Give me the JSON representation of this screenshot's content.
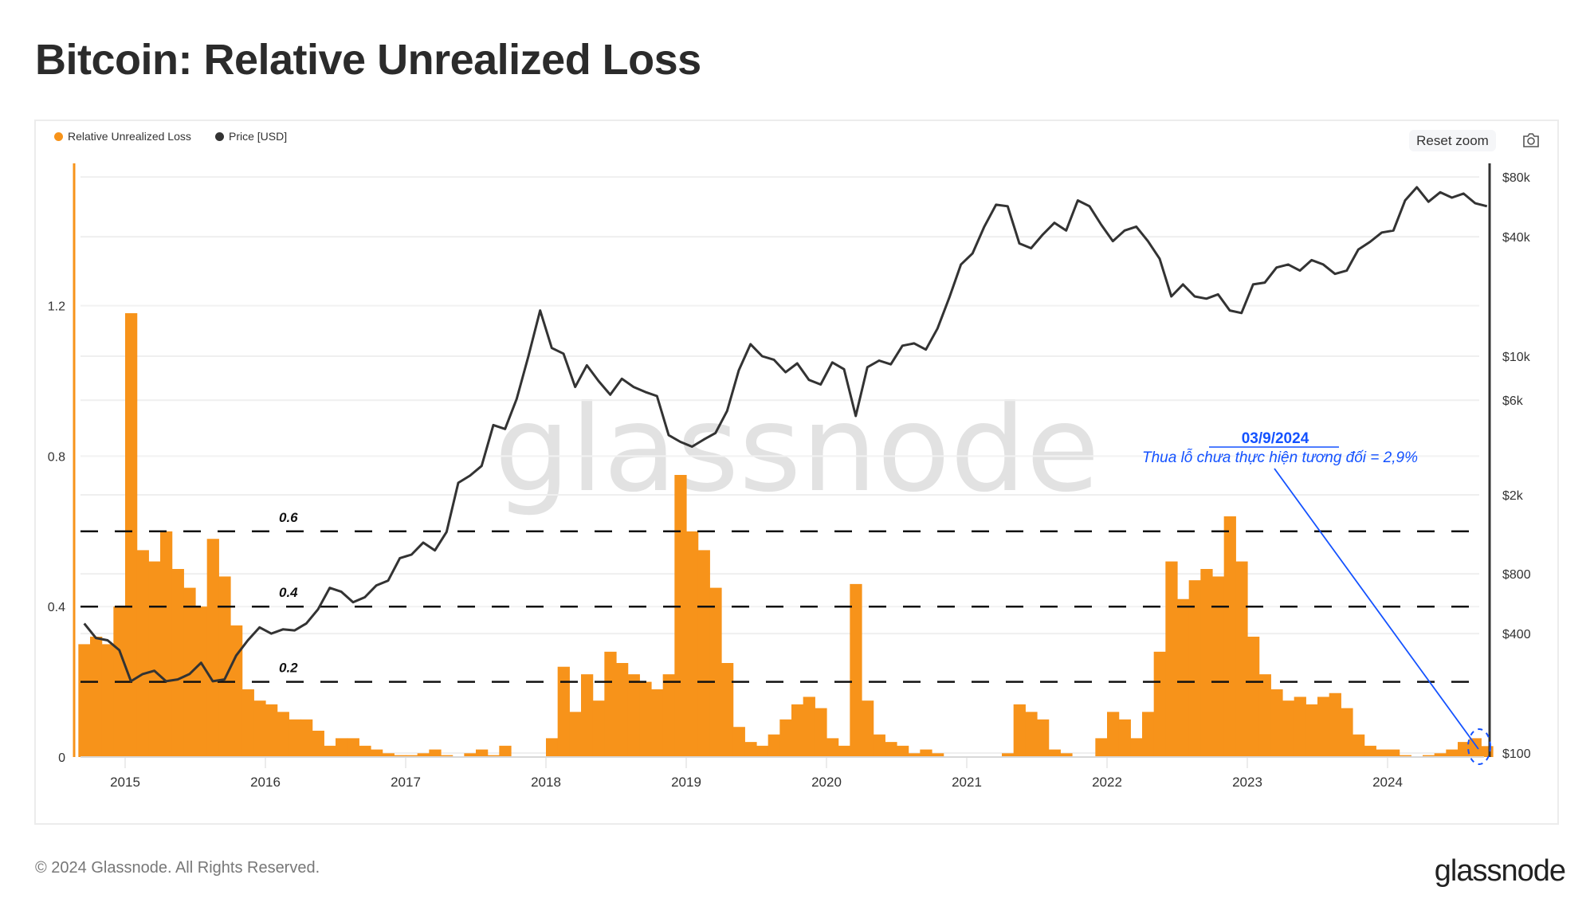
{
  "title": "Bitcoin: Relative Unrealized Loss",
  "toolbar": {
    "reset_zoom": "Reset zoom",
    "camera_icon": "camera-icon"
  },
  "footer": {
    "copyright": "© 2024 Glassnode. All Rights Reserved.",
    "logo": "glassnode"
  },
  "watermark": "glassnode",
  "colors": {
    "rul": "#f7931a",
    "price": "#333333",
    "annotation": "#1452ff",
    "dashed": "#111111"
  },
  "chart_data": {
    "type": "area",
    "legend": [
      {
        "name": "Relative Unrealized Loss",
        "color": "#f7931a"
      },
      {
        "name": "Price [USD]",
        "color": "#333333"
      }
    ],
    "legend_position": "top-left",
    "x_ticks": [
      "2015",
      "2016",
      "2017",
      "2018",
      "2019",
      "2020",
      "2021",
      "2022",
      "2023",
      "2024"
    ],
    "y_left": {
      "ticks": [
        "0",
        "0.4",
        "0.8",
        "1.2"
      ],
      "tick_values": [
        0,
        0.4,
        0.8,
        1.2
      ],
      "range": [
        0,
        1.55
      ]
    },
    "y_right": {
      "scale": "log",
      "ticks": [
        "$100",
        "$400",
        "$800",
        "$2k",
        "$6k",
        "$10k",
        "$40k",
        "$80k"
      ],
      "tick_values": [
        100,
        400,
        800,
        2000,
        6000,
        10000,
        40000,
        80000
      ],
      "range": [
        100,
        100000
      ]
    },
    "reference_lines": [
      {
        "value": 0.6,
        "label": "0.6"
      },
      {
        "value": 0.4,
        "label": "0.4"
      },
      {
        "value": 0.2,
        "label": "0.2"
      }
    ],
    "annotation": {
      "date": "03/9/2024",
      "text": "Thua lỗ chưa thực hiện tương đối = 2,9%",
      "value": 0.029
    },
    "x": [
      "2014-09",
      "2014-10",
      "2014-11",
      "2014-12",
      "2015-01",
      "2015-02",
      "2015-03",
      "2015-04",
      "2015-05",
      "2015-06",
      "2015-07",
      "2015-08",
      "2015-09",
      "2015-10",
      "2015-11",
      "2015-12",
      "2016-01",
      "2016-02",
      "2016-03",
      "2016-04",
      "2016-05",
      "2016-06",
      "2016-07",
      "2016-08",
      "2016-09",
      "2016-10",
      "2016-11",
      "2016-12",
      "2017-01",
      "2017-02",
      "2017-03",
      "2017-04",
      "2017-05",
      "2017-06",
      "2017-07",
      "2017-08",
      "2017-09",
      "2017-10",
      "2017-11",
      "2017-12",
      "2018-01",
      "2018-02",
      "2018-03",
      "2018-04",
      "2018-05",
      "2018-06",
      "2018-07",
      "2018-08",
      "2018-09",
      "2018-10",
      "2018-11",
      "2018-12",
      "2019-01",
      "2019-02",
      "2019-03",
      "2019-04",
      "2019-05",
      "2019-06",
      "2019-07",
      "2019-08",
      "2019-09",
      "2019-10",
      "2019-11",
      "2019-12",
      "2020-01",
      "2020-02",
      "2020-03",
      "2020-04",
      "2020-05",
      "2020-06",
      "2020-07",
      "2020-08",
      "2020-09",
      "2020-10",
      "2020-11",
      "2020-12",
      "2021-01",
      "2021-02",
      "2021-03",
      "2021-04",
      "2021-05",
      "2021-06",
      "2021-07",
      "2021-08",
      "2021-09",
      "2021-10",
      "2021-11",
      "2021-12",
      "2022-01",
      "2022-02",
      "2022-03",
      "2022-04",
      "2022-05",
      "2022-06",
      "2022-07",
      "2022-08",
      "2022-09",
      "2022-10",
      "2022-11",
      "2022-12",
      "2023-01",
      "2023-02",
      "2023-03",
      "2023-04",
      "2023-05",
      "2023-06",
      "2023-07",
      "2023-08",
      "2023-09",
      "2023-10",
      "2023-11",
      "2023-12",
      "2024-01",
      "2024-02",
      "2024-03",
      "2024-04",
      "2024-05",
      "2024-06",
      "2024-07",
      "2024-08",
      "2024-09"
    ],
    "series": [
      {
        "name": "Relative Unrealized Loss",
        "axis": "left",
        "values": [
          0.3,
          0.32,
          0.3,
          0.4,
          1.18,
          0.55,
          0.52,
          0.6,
          0.5,
          0.45,
          0.4,
          0.58,
          0.48,
          0.35,
          0.18,
          0.15,
          0.14,
          0.12,
          0.1,
          0.1,
          0.07,
          0.03,
          0.05,
          0.05,
          0.03,
          0.02,
          0.01,
          0.005,
          0.005,
          0.01,
          0.02,
          0.005,
          0.0,
          0.01,
          0.02,
          0.005,
          0.03,
          0.0,
          0.0,
          0.0,
          0.05,
          0.24,
          0.12,
          0.22,
          0.15,
          0.28,
          0.25,
          0.22,
          0.2,
          0.18,
          0.22,
          0.75,
          0.6,
          0.55,
          0.45,
          0.25,
          0.08,
          0.04,
          0.03,
          0.06,
          0.1,
          0.14,
          0.16,
          0.13,
          0.05,
          0.03,
          0.46,
          0.15,
          0.06,
          0.04,
          0.03,
          0.01,
          0.02,
          0.01,
          0.0,
          0.0,
          0.0,
          0.0,
          0.0,
          0.01,
          0.14,
          0.12,
          0.1,
          0.02,
          0.01,
          0.0,
          0.0,
          0.05,
          0.12,
          0.1,
          0.05,
          0.12,
          0.28,
          0.52,
          0.42,
          0.47,
          0.5,
          0.48,
          0.64,
          0.52,
          0.32,
          0.22,
          0.18,
          0.15,
          0.16,
          0.14,
          0.16,
          0.17,
          0.13,
          0.06,
          0.03,
          0.02,
          0.02,
          0.005,
          0.0,
          0.005,
          0.01,
          0.02,
          0.04,
          0.05,
          0.029
        ]
      },
      {
        "name": "Price [USD]",
        "axis": "right",
        "values": [
          450,
          380,
          370,
          330,
          230,
          250,
          260,
          230,
          235,
          250,
          285,
          230,
          235,
          310,
          370,
          430,
          400,
          420,
          415,
          450,
          530,
          680,
          650,
          575,
          610,
          700,
          740,
          960,
          1000,
          1150,
          1050,
          1300,
          2300,
          2500,
          2800,
          4500,
          4300,
          6100,
          10000,
          17000,
          11000,
          10300,
          7000,
          9000,
          7500,
          6400,
          7700,
          7000,
          6600,
          6300,
          4000,
          3700,
          3500,
          3800,
          4100,
          5300,
          8500,
          11500,
          10000,
          9600,
          8300,
          9200,
          7600,
          7200,
          9300,
          8600,
          5000,
          8800,
          9500,
          9100,
          11300,
          11600,
          10800,
          13800,
          19700,
          29000,
          33000,
          45000,
          58000,
          57000,
          37000,
          35000,
          41000,
          47000,
          43000,
          61000,
          57000,
          46000,
          38000,
          43000,
          45000,
          38000,
          31000,
          20000,
          23000,
          20000,
          19500,
          20500,
          17000,
          16500,
          23000,
          23500,
          28000,
          29000,
          27000,
          30500,
          29000,
          26000,
          27000,
          34500,
          37700,
          42000,
          43000,
          61000,
          71000,
          60000,
          67000,
          63000,
          66000,
          59000,
          57000
        ]
      }
    ]
  }
}
